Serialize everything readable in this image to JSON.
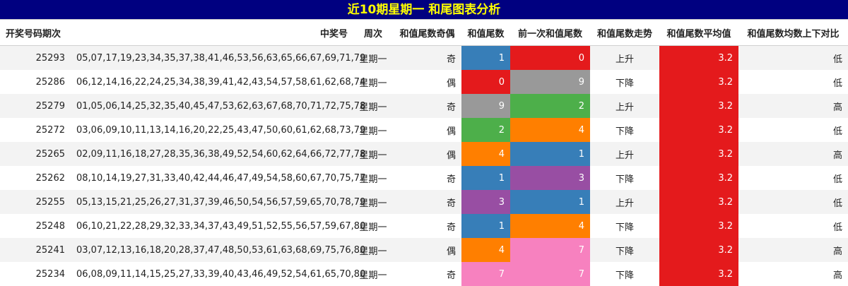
{
  "title": "近10期星期一 和尾图表分析",
  "headers": [
    "开奖号码期次",
    "中奖号",
    "周次",
    "和值尾数奇偶",
    "和值尾数",
    "前一次和值尾数",
    "和值尾数走势",
    "和值尾数平均值",
    "和值尾数均数上下对比"
  ],
  "digit_colors": {
    "0": "#e41a1c",
    "1": "#377eb8",
    "2": "#4daf4a",
    "3": "#984ea3",
    "4": "#ff7f00",
    "7": "#f781bf",
    "9": "#999999"
  },
  "avg_color": "#e41a1c",
  "rows": [
    {
      "period": "25293",
      "numbers": "05,07,17,19,23,34,35,37,38,41,46,53,56,63,65,66,67,69,71,79",
      "weekday": "星期一",
      "parity": "奇",
      "tail": "1",
      "prev_tail": "0",
      "trend": "上升",
      "avg": "3.2",
      "compare": "低"
    },
    {
      "period": "25286",
      "numbers": "06,12,14,16,22,24,25,34,38,39,41,42,43,54,57,58,61,62,68,74",
      "weekday": "星期一",
      "parity": "偶",
      "tail": "0",
      "prev_tail": "9",
      "trend": "下降",
      "avg": "3.2",
      "compare": "低"
    },
    {
      "period": "25279",
      "numbers": "01,05,06,14,25,32,35,40,45,47,53,62,63,67,68,70,71,72,75,78",
      "weekday": "星期一",
      "parity": "奇",
      "tail": "9",
      "prev_tail": "2",
      "trend": "上升",
      "avg": "3.2",
      "compare": "高"
    },
    {
      "period": "25272",
      "numbers": "03,06,09,10,11,13,14,16,20,22,25,43,47,50,60,61,62,68,73,79",
      "weekday": "星期一",
      "parity": "偶",
      "tail": "2",
      "prev_tail": "4",
      "trend": "下降",
      "avg": "3.2",
      "compare": "低"
    },
    {
      "period": "25265",
      "numbers": "02,09,11,16,18,27,28,35,36,38,49,52,54,60,62,64,66,72,77,78",
      "weekday": "星期一",
      "parity": "偶",
      "tail": "4",
      "prev_tail": "1",
      "trend": "上升",
      "avg": "3.2",
      "compare": "高"
    },
    {
      "period": "25262",
      "numbers": "08,10,14,19,27,31,33,40,42,44,46,47,49,54,58,60,67,70,75,77",
      "weekday": "星期一",
      "parity": "奇",
      "tail": "1",
      "prev_tail": "3",
      "trend": "下降",
      "avg": "3.2",
      "compare": "低"
    },
    {
      "period": "25255",
      "numbers": "05,13,15,21,25,26,27,31,37,39,46,50,54,56,57,59,65,70,78,79",
      "weekday": "星期一",
      "parity": "奇",
      "tail": "3",
      "prev_tail": "1",
      "trend": "上升",
      "avg": "3.2",
      "compare": "低"
    },
    {
      "period": "25248",
      "numbers": "06,10,21,22,28,29,32,33,34,37,43,49,51,52,55,56,57,59,67,80",
      "weekday": "星期一",
      "parity": "奇",
      "tail": "1",
      "prev_tail": "4",
      "trend": "下降",
      "avg": "3.2",
      "compare": "低"
    },
    {
      "period": "25241",
      "numbers": "03,07,12,13,16,18,20,28,37,47,48,50,53,61,63,68,69,75,76,80",
      "weekday": "星期一",
      "parity": "偶",
      "tail": "4",
      "prev_tail": "7",
      "trend": "下降",
      "avg": "3.2",
      "compare": "高"
    },
    {
      "period": "25234",
      "numbers": "06,08,09,11,14,15,25,27,33,39,40,43,46,49,52,54,61,65,70,80",
      "weekday": "星期一",
      "parity": "奇",
      "tail": "7",
      "prev_tail": "7",
      "trend": "下降",
      "avg": "3.2",
      "compare": "高"
    }
  ]
}
